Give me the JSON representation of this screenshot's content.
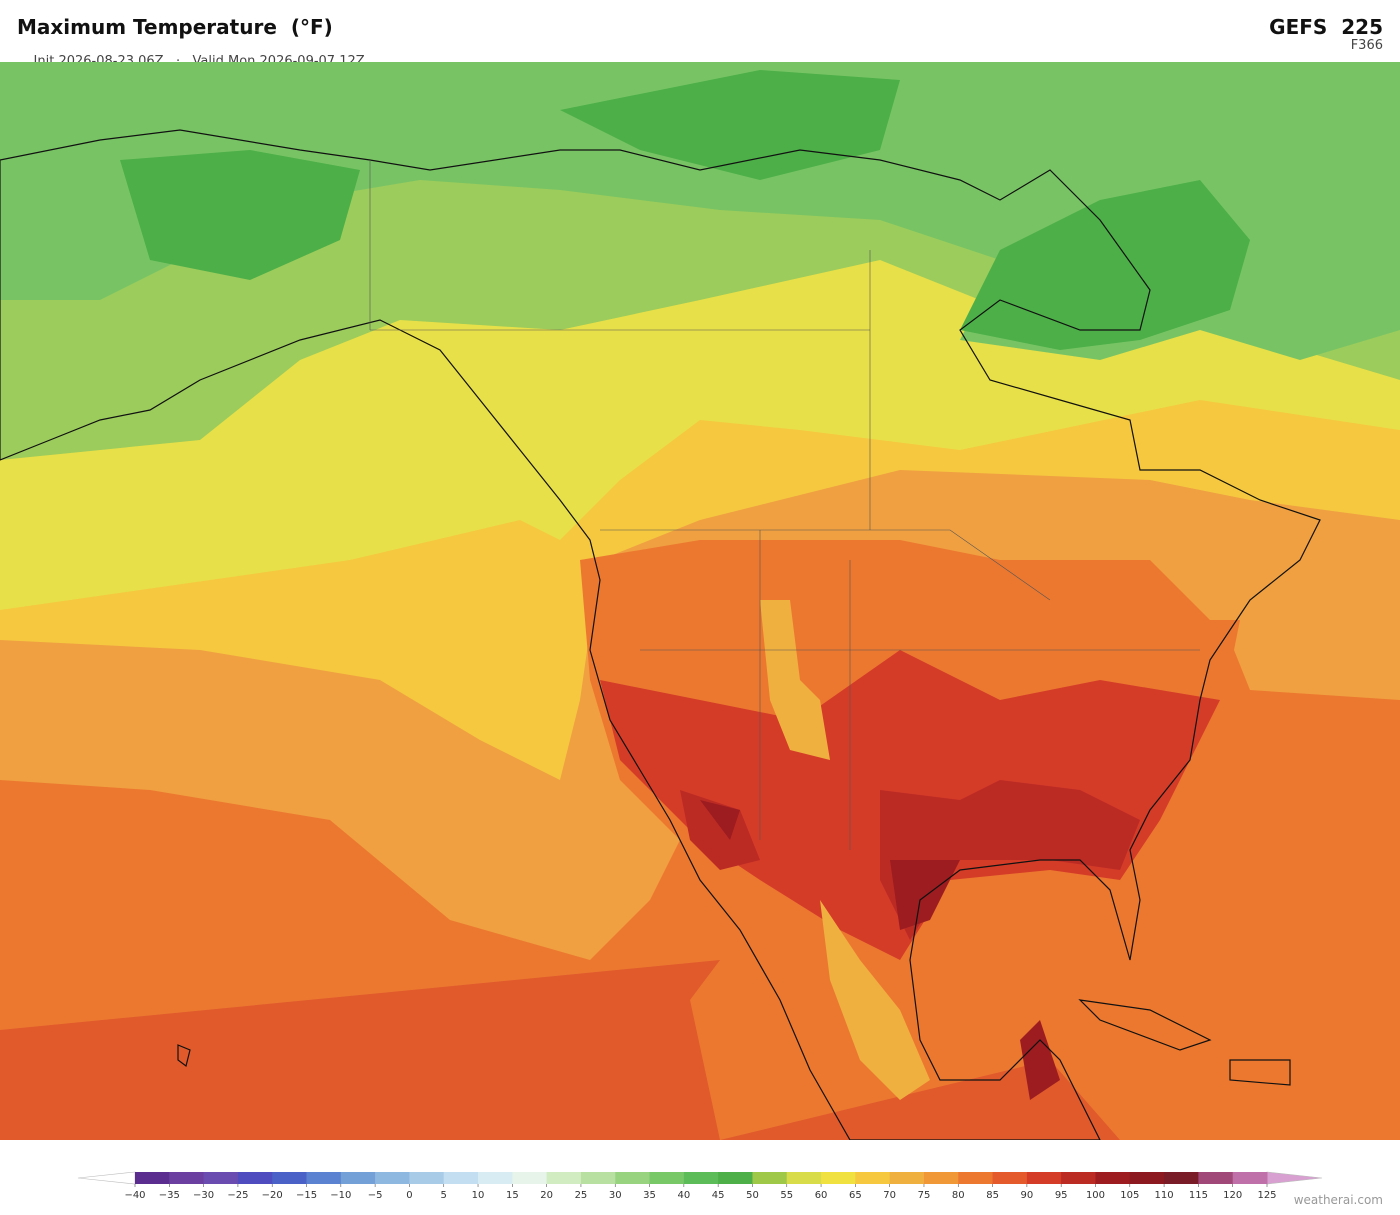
{
  "header": {
    "title": "Maximum Temperature  (°F)",
    "init": "Init 2026-08-23 06Z",
    "separator": "·",
    "valid": "Valid Mon 2026-09-07 12Z",
    "model": "GEFS  225",
    "forecast_hour": "F366"
  },
  "colorbar": {
    "ticks": [
      {
        "value": -40,
        "label": "−40"
      },
      {
        "value": -35,
        "label": "−35"
      },
      {
        "value": -30,
        "label": "−30"
      },
      {
        "value": -25,
        "label": "−25"
      },
      {
        "value": -20,
        "label": "−20"
      },
      {
        "value": -15,
        "label": "−15"
      },
      {
        "value": -10,
        "label": "−10"
      },
      {
        "value": -5,
        "label": "−5"
      },
      0,
      5,
      10,
      15,
      20,
      25,
      30,
      35,
      40,
      45,
      50,
      55,
      60,
      65,
      70,
      75,
      80,
      85,
      90,
      95,
      100,
      105,
      110,
      115,
      120,
      125
    ],
    "colors": [
      "#5b2d8e",
      "#6b3fa0",
      "#6a4cb0",
      "#4f4cc0",
      "#4a62c8",
      "#5b82d0",
      "#74a0d8",
      "#8fb8e0",
      "#a8cce8",
      "#c2def0",
      "#d8ecf4",
      "#e6f4ea",
      "#d0ecc0",
      "#b8e0a0",
      "#98d480",
      "#78c868",
      "#5cbc58",
      "#4caf48",
      "#a0c848",
      "#d8dc48",
      "#f0e040",
      "#f5c840",
      "#f0b040",
      "#f09838",
      "#ec7830",
      "#e45a2c",
      "#d43c28",
      "#bc2a24",
      "#9c1c20",
      "#8c1820",
      "#7a1c28",
      "#a04878",
      "#c070a8"
    ],
    "under_color": "#ffffff",
    "over_color": "#d8a0d0"
  },
  "watermark": "weatherai.com"
}
